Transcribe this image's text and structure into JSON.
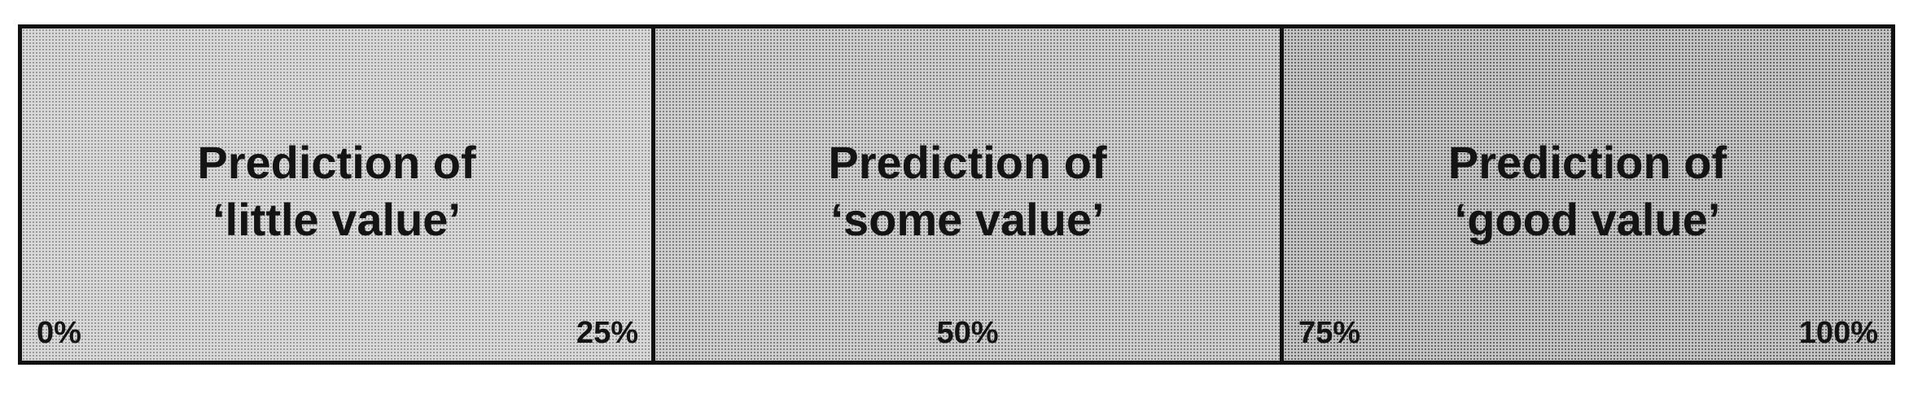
{
  "segments": [
    {
      "title_line1": "Prediction of",
      "title_line2": "‘little value’",
      "left_label": "0%",
      "right_label": "25%"
    },
    {
      "title_line1": "Prediction of",
      "title_line2": "‘some value’",
      "center_label": "50%"
    },
    {
      "title_line1": "Prediction of",
      "title_line2": "‘good value’",
      "left_label": "75%",
      "right_label": "100%"
    }
  ],
  "colors": {
    "border": "#111111",
    "segment_1_fill": "#d9d9d9",
    "segment_2_fill": "#cfcfcf",
    "segment_3_fill": "#c6c6c6",
    "text": "#141414"
  }
}
